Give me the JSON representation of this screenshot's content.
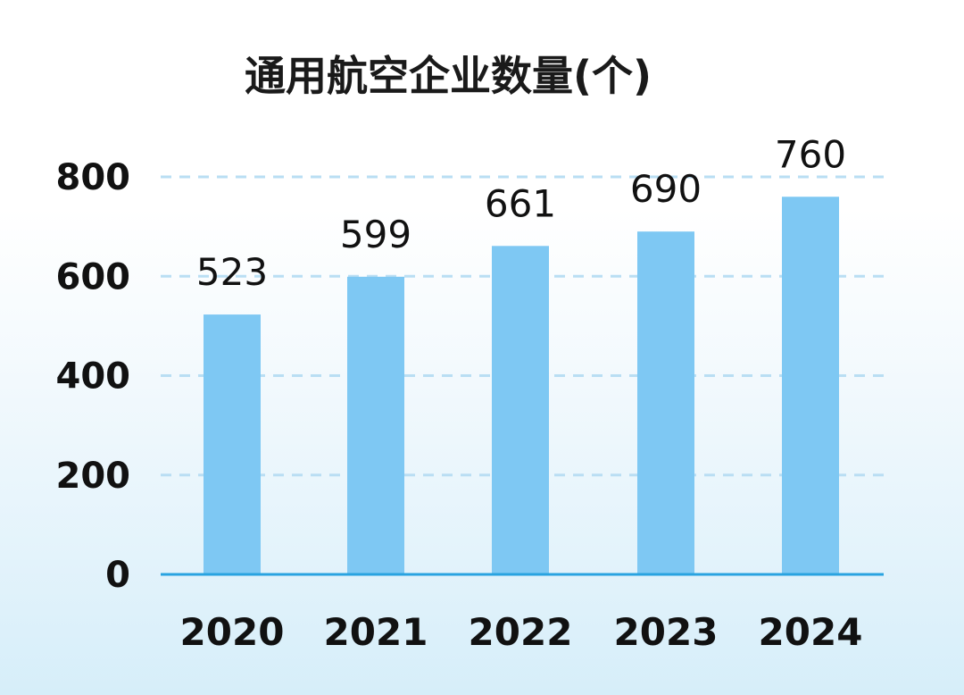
{
  "chart_data": {
    "type": "bar",
    "title": "通用航空企业数量(个)",
    "categories": [
      "2020",
      "2021",
      "2022",
      "2023",
      "2024"
    ],
    "values": [
      523,
      599,
      661,
      690,
      760
    ],
    "yticks": [
      "0",
      "200",
      "400",
      "600",
      "800"
    ],
    "ylim": [
      0,
      800
    ],
    "grid": true,
    "grid_style": "dashed",
    "legend": "none",
    "data_labels": true,
    "colors": {
      "bar": "#7ec8f3",
      "axis": "#29a3e0",
      "grid": "#b9def3",
      "text": "#111111"
    }
  }
}
